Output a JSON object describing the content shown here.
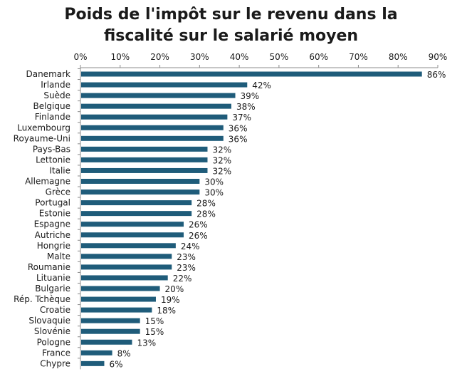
{
  "chart_data": {
    "type": "bar",
    "orientation": "horizontal",
    "title": "Poids de l'impôt sur le revenu dans la fiscalité sur le salarié moyen",
    "title_lines": [
      "Poids de l'impôt sur le revenu dans la",
      "fiscalité sur le salarié moyen"
    ],
    "xlabel": "",
    "ylabel": "",
    "xlim": [
      0,
      90
    ],
    "x_ticks": [
      "0%",
      "10%",
      "20%",
      "30%",
      "40%",
      "50%",
      "60%",
      "70%",
      "80%",
      "90%"
    ],
    "x_axis_position": "top",
    "grid": false,
    "legend": "none",
    "bar_color": "#1f5c7a",
    "categories": [
      "Danemark",
      "Irlande",
      "Suède",
      "Belgique",
      "Finlande",
      "Luxembourg",
      "Royaume-Uni",
      "Pays-Bas",
      "Lettonie",
      "Italie",
      "Allemagne",
      "Grèce",
      "Portugal",
      "Estonie",
      "Espagne",
      "Autriche",
      "Hongrie",
      "Malte",
      "Roumanie",
      "Lituanie",
      "Bulgarie",
      "Rép. Tchèque",
      "Croatie",
      "Slovaquie",
      "Slovénie",
      "Pologne",
      "France",
      "Chypre"
    ],
    "values": [
      86,
      42,
      39,
      38,
      37,
      36,
      36,
      32,
      32,
      32,
      30,
      30,
      28,
      28,
      26,
      26,
      24,
      23,
      23,
      22,
      20,
      19,
      18,
      15,
      15,
      13,
      8,
      6
    ],
    "data_labels": [
      "86%",
      "42%",
      "39%",
      "38%",
      "37%",
      "36%",
      "36%",
      "32%",
      "32%",
      "32%",
      "30%",
      "30%",
      "28%",
      "28%",
      "26%",
      "26%",
      "24%",
      "23%",
      "23%",
      "22%",
      "20%",
      "19%",
      "18%",
      "15%",
      "15%",
      "13%",
      "8%",
      "6%"
    ]
  }
}
